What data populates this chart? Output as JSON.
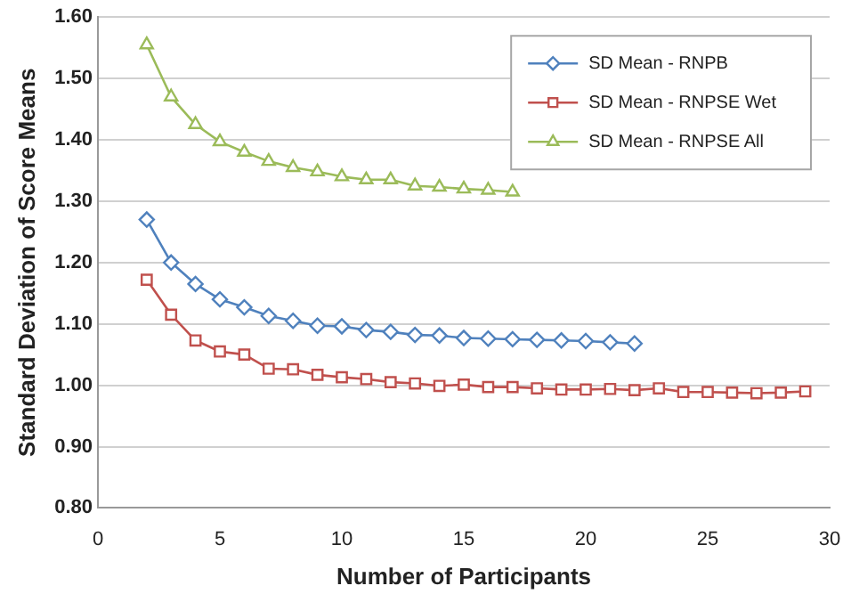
{
  "chart_data": {
    "type": "line",
    "xlabel": "Number of Participants",
    "ylabel": "Standard Deviation of Score Means",
    "xlim": [
      0,
      30
    ],
    "xticks": [
      0,
      5,
      10,
      15,
      20,
      25,
      30
    ],
    "ylim": [
      0.8,
      1.6
    ],
    "yticks": [
      {
        "value": 0.8,
        "label": "0.80"
      },
      {
        "value": 0.9,
        "label": "0.90"
      },
      {
        "value": 1.0,
        "label": "1.00"
      },
      {
        "value": 1.1,
        "label": "1.10"
      },
      {
        "value": 1.2,
        "label": "1.20"
      },
      {
        "value": 1.3,
        "label": "1.30"
      },
      {
        "value": 1.4,
        "label": "1.40"
      },
      {
        "value": 1.5,
        "label": "1.50"
      },
      {
        "value": 1.6,
        "label": "1.60"
      }
    ],
    "grid": "y",
    "legend": "top right",
    "line_style": "solid",
    "series": [
      {
        "name": "SD Mean - RNPB",
        "color": "#4f81bd",
        "marker": "diamond",
        "x": [
          2,
          3,
          4,
          5,
          6,
          7,
          8,
          9,
          10,
          11,
          12,
          13,
          14,
          15,
          16,
          17,
          18,
          19,
          20,
          21,
          22
        ],
        "values": [
          1.27,
          1.2,
          1.165,
          1.14,
          1.127,
          1.113,
          1.105,
          1.097,
          1.096,
          1.09,
          1.087,
          1.082,
          1.081,
          1.077,
          1.076,
          1.075,
          1.074,
          1.073,
          1.072,
          1.07,
          1.068
        ]
      },
      {
        "name": "SD Mean - RNPSE Wet",
        "color": "#c0504d",
        "marker": "square",
        "x": [
          2,
          3,
          4,
          5,
          6,
          7,
          8,
          9,
          10,
          11,
          12,
          13,
          14,
          15,
          16,
          17,
          18,
          19,
          20,
          21,
          22,
          23,
          24,
          25,
          26,
          27,
          28,
          29
        ],
        "values": [
          1.172,
          1.115,
          1.073,
          1.055,
          1.05,
          1.027,
          1.026,
          1.017,
          1.013,
          1.01,
          1.005,
          1.003,
          0.999,
          1.001,
          0.997,
          0.997,
          0.995,
          0.993,
          0.993,
          0.994,
          0.992,
          0.995,
          0.989,
          0.989,
          0.988,
          0.987,
          0.988,
          0.99
        ]
      },
      {
        "name": "SD Mean - RNPSE All",
        "color": "#9bbb59",
        "marker": "triangle",
        "x": [
          2,
          3,
          4,
          5,
          6,
          7,
          8,
          9,
          10,
          11,
          12,
          13,
          14,
          15,
          16,
          17
        ],
        "values": [
          1.555,
          1.47,
          1.425,
          1.397,
          1.38,
          1.365,
          1.355,
          1.348,
          1.34,
          1.335,
          1.335,
          1.325,
          1.323,
          1.32,
          1.318,
          1.315
        ]
      }
    ]
  }
}
